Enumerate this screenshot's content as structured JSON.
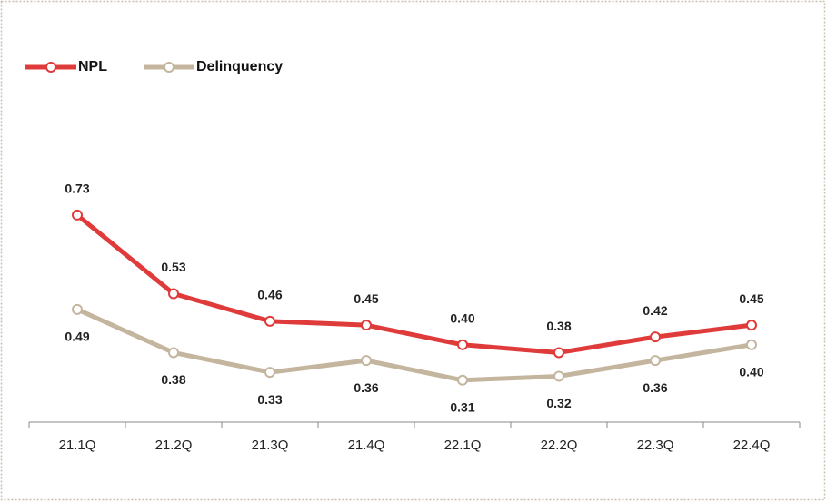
{
  "chart_data": {
    "type": "line",
    "categories": [
      "21.1Q",
      "21.2Q",
      "21.3Q",
      "21.4Q",
      "22.1Q",
      "22.2Q",
      "22.3Q",
      "22.4Q"
    ],
    "series": [
      {
        "name": "NPL",
        "color": "#e03b3b",
        "values": [
          0.73,
          0.53,
          0.46,
          0.45,
          0.4,
          0.38,
          0.42,
          0.45
        ],
        "value_labels": [
          "0.73",
          "0.53",
          "0.46",
          "0.45",
          "0.40",
          "0.38",
          "0.42",
          "0.45"
        ]
      },
      {
        "name": "Delinquency",
        "color": "#c4b59f",
        "values": [
          0.49,
          0.38,
          0.33,
          0.36,
          0.31,
          0.32,
          0.36,
          0.4
        ],
        "value_labels": [
          "0.49",
          "0.38",
          "0.33",
          "0.36",
          "0.31",
          "0.32",
          "0.36",
          "0.40"
        ]
      }
    ],
    "legend": "top-left"
  }
}
